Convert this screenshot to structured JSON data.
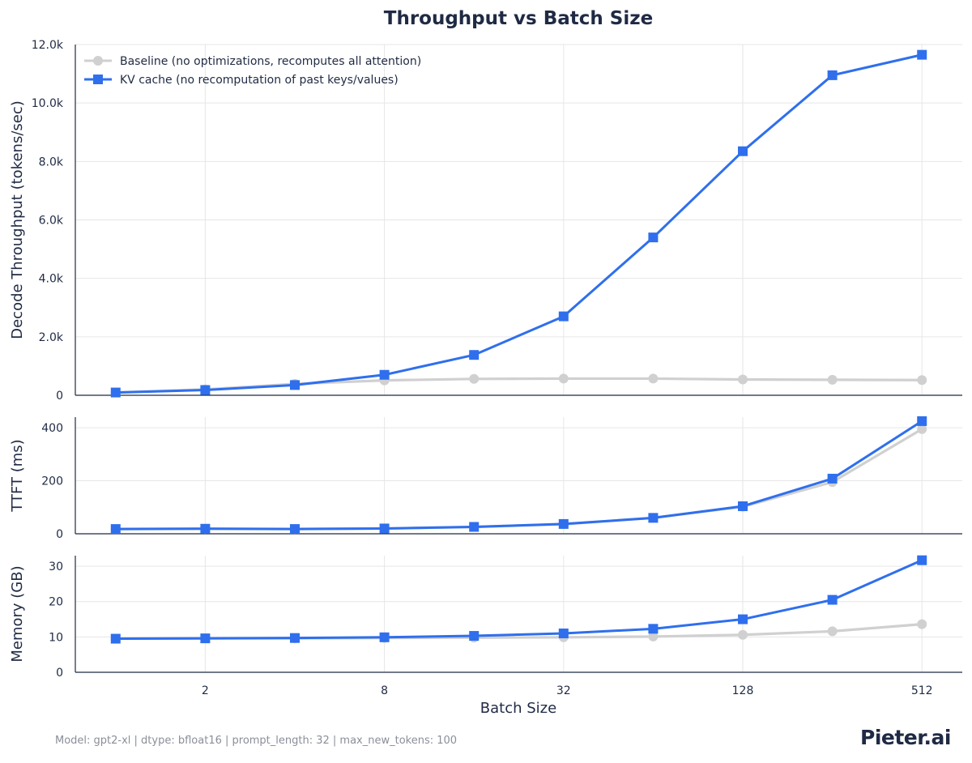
{
  "chart_data": {
    "type": "line",
    "title": "Throughput vs Batch Size",
    "xlabel": "Batch Size",
    "x_scale": "log2",
    "x": [
      1,
      2,
      4,
      8,
      16,
      32,
      64,
      128,
      256,
      512
    ],
    "x_ticks": [
      2,
      8,
      32,
      128,
      512
    ],
    "x_tick_labels": [
      "2",
      "8",
      "32",
      "128",
      "512"
    ],
    "legend": {
      "placement": "top-left",
      "entries": [
        "Baseline (no optimizations, recomputes all attention)",
        "KV cache (no recomputation of past keys/values)"
      ]
    },
    "colors": {
      "baseline": "#d0d0d0",
      "kv_cache": "#2f6fed",
      "axis": "#1f2a44",
      "grid": "#e6e6e6"
    },
    "panels": [
      {
        "ylabel": "Decode Throughput (tokens/sec)",
        "ylim": [
          0,
          12000
        ],
        "y_ticks": [
          0,
          2000,
          4000,
          6000,
          8000,
          10000,
          12000
        ],
        "y_tick_labels": [
          "0",
          "2.0k",
          "4.0k",
          "6.0k",
          "8.0k",
          "10.0k",
          "12.0k"
        ],
        "series": [
          {
            "name": "Baseline (no optimizations, recomputes all attention)",
            "values": [
              95,
              200,
              390,
              510,
              560,
              570,
              570,
              540,
              530,
              520
            ]
          },
          {
            "name": "KV cache (no recomputation of past keys/values)",
            "values": [
              95,
              180,
              350,
              700,
              1380,
              2700,
              5400,
              8350,
              10950,
              11650
            ]
          }
        ]
      },
      {
        "ylabel": "TTFT (ms)",
        "ylim": [
          0,
          440
        ],
        "y_ticks": [
          0,
          200,
          400
        ],
        "y_tick_labels": [
          "0",
          "200",
          "400"
        ],
        "series": [
          {
            "name": "Baseline (no optimizations, recomputes all attention)",
            "values": [
              18,
              19,
              18,
              20,
              26,
              36,
              60,
              102,
              195,
              395
            ]
          },
          {
            "name": "KV cache (no recomputation of past keys/values)",
            "values": [
              18,
              19,
              18,
              20,
              26,
              37,
              60,
              104,
              208,
              425
            ]
          }
        ]
      },
      {
        "ylabel": "Memory (GB)",
        "ylim": [
          0,
          33
        ],
        "y_ticks": [
          0,
          10,
          20,
          30
        ],
        "y_tick_labels": [
          "0",
          "10",
          "20",
          "30"
        ],
        "series": [
          {
            "name": "Baseline (no optimizations, recomputes all attention)",
            "values": [
              9.5,
              9.6,
              9.6,
              9.7,
              9.8,
              9.9,
              10.1,
              10.6,
              11.6,
              13.6
            ]
          },
          {
            "name": "KV cache (no recomputation of past keys/values)",
            "values": [
              9.5,
              9.6,
              9.7,
              9.9,
              10.3,
              11.0,
              12.3,
              15.0,
              20.5,
              31.7
            ]
          }
        ]
      }
    ]
  },
  "footer": {
    "text": "Model: gpt2-xl  |  dtype: bfloat16  |  prompt_length: 32  |  max_new_tokens: 100",
    "logo": "Pieter.ai"
  }
}
